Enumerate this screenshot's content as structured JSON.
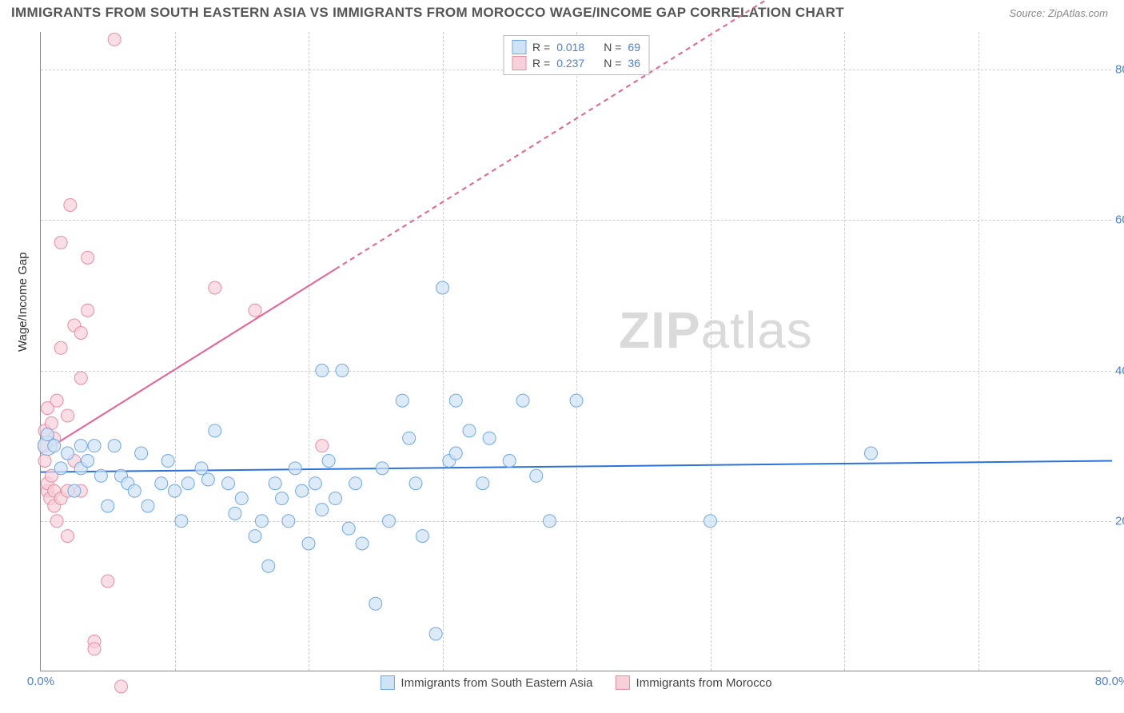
{
  "title": "IMMIGRANTS FROM SOUTH EASTERN ASIA VS IMMIGRANTS FROM MOROCCO WAGE/INCOME GAP CORRELATION CHART",
  "source": "Source: ZipAtlas.com",
  "watermark_zip": "ZIP",
  "watermark_atlas": "atlas",
  "y_axis_label": "Wage/Income Gap",
  "chart": {
    "type": "scatter",
    "xlim": [
      0,
      80
    ],
    "ylim": [
      0,
      85
    ],
    "x_ticks": [
      0,
      80
    ],
    "x_tick_labels": [
      "0.0%",
      "80.0%"
    ],
    "x_minor_grid": [
      10,
      20,
      30,
      40,
      50,
      60,
      70
    ],
    "y_ticks": [
      20,
      40,
      60,
      80
    ],
    "y_tick_labels": [
      "20.0%",
      "40.0%",
      "60.0%",
      "80.0%"
    ],
    "background_color": "#ffffff",
    "grid_color": "#cccccc",
    "axis_color": "#888888",
    "tick_label_color": "#4a7fd6",
    "marker_radius": 8,
    "marker_large_radius": 12,
    "series": [
      {
        "name": "Immigrants from South Eastern Asia",
        "fill": "#cfe3f7",
        "stroke": "#6fa8e6",
        "fill_opacity": 0.7,
        "trend": {
          "y_at_x0": 26.5,
          "y_at_x80": 28.0,
          "color": "#2d72d9",
          "width": 2,
          "dash": "none"
        },
        "R": "0.018",
        "N": "69",
        "points": [
          [
            0.5,
            30
          ],
          [
            0.5,
            31.5
          ],
          [
            1,
            30
          ],
          [
            1.5,
            27
          ],
          [
            2,
            29
          ],
          [
            2.5,
            24
          ],
          [
            3,
            30
          ],
          [
            3,
            27
          ],
          [
            3.5,
            28
          ],
          [
            4,
            30
          ],
          [
            4.5,
            26
          ],
          [
            5,
            22
          ],
          [
            5.5,
            30
          ],
          [
            6,
            26
          ],
          [
            6.5,
            25
          ],
          [
            7,
            24
          ],
          [
            7.5,
            29
          ],
          [
            8,
            22
          ],
          [
            9,
            25
          ],
          [
            9.5,
            28
          ],
          [
            10,
            24
          ],
          [
            10.5,
            20
          ],
          [
            11,
            25
          ],
          [
            12,
            27
          ],
          [
            12.5,
            25.5
          ],
          [
            13,
            32
          ],
          [
            14,
            25
          ],
          [
            14.5,
            21
          ],
          [
            15,
            23
          ],
          [
            16,
            18
          ],
          [
            16.5,
            20
          ],
          [
            17,
            14
          ],
          [
            17.5,
            25
          ],
          [
            18,
            23
          ],
          [
            18.5,
            20
          ],
          [
            19,
            27
          ],
          [
            19.5,
            24
          ],
          [
            20,
            17
          ],
          [
            20.5,
            25
          ],
          [
            21,
            21.5
          ],
          [
            21,
            40
          ],
          [
            21.5,
            28
          ],
          [
            22,
            23
          ],
          [
            22.5,
            40
          ],
          [
            23,
            19
          ],
          [
            23.5,
            25
          ],
          [
            24,
            17
          ],
          [
            25,
            9
          ],
          [
            25.5,
            27
          ],
          [
            26,
            20
          ],
          [
            27,
            36
          ],
          [
            27.5,
            31
          ],
          [
            28,
            25
          ],
          [
            28.5,
            18
          ],
          [
            29.5,
            5
          ],
          [
            30,
            51
          ],
          [
            30.5,
            28
          ],
          [
            31,
            29
          ],
          [
            31,
            36
          ],
          [
            32,
            32
          ],
          [
            33,
            25
          ],
          [
            33.5,
            31
          ],
          [
            35,
            28
          ],
          [
            36,
            36
          ],
          [
            37,
            26
          ],
          [
            38,
            20
          ],
          [
            40,
            36
          ],
          [
            50,
            20
          ],
          [
            62,
            29
          ]
        ]
      },
      {
        "name": "Immigrants from Morocco",
        "fill": "#f8d0da",
        "stroke": "#e98ca5",
        "fill_opacity": 0.7,
        "trend": {
          "y_at_x0": 29,
          "y_at_x80": 118,
          "color": "#e85f92",
          "width": 2,
          "dash": "6 5",
          "solid_until_x": 22
        },
        "R": "0.237",
        "N": "36",
        "points": [
          [
            0.3,
            28
          ],
          [
            0.3,
            30
          ],
          [
            0.3,
            32
          ],
          [
            0.5,
            24
          ],
          [
            0.5,
            25
          ],
          [
            0.5,
            35
          ],
          [
            0.7,
            23
          ],
          [
            0.8,
            26
          ],
          [
            0.8,
            33
          ],
          [
            1,
            22
          ],
          [
            1,
            24
          ],
          [
            1,
            31
          ],
          [
            1.2,
            20
          ],
          [
            1.2,
            36
          ],
          [
            1.5,
            23
          ],
          [
            1.5,
            43
          ],
          [
            1.5,
            57
          ],
          [
            2,
            18
          ],
          [
            2,
            24
          ],
          [
            2,
            34
          ],
          [
            2.2,
            62
          ],
          [
            2.5,
            28
          ],
          [
            2.5,
            46
          ],
          [
            3,
            24
          ],
          [
            3,
            39
          ],
          [
            3,
            45
          ],
          [
            3.5,
            48
          ],
          [
            3.5,
            55
          ],
          [
            4,
            4
          ],
          [
            4,
            3
          ],
          [
            5,
            12
          ],
          [
            5.5,
            84
          ],
          [
            6,
            -2
          ],
          [
            13,
            51
          ],
          [
            16,
            48
          ],
          [
            21,
            30
          ]
        ]
      }
    ]
  },
  "legend_top": {
    "r_label": "R =",
    "n_label": "N ="
  },
  "legend_bottom": {
    "items": [
      "Immigrants from South Eastern Asia",
      "Immigrants from Morocco"
    ]
  }
}
